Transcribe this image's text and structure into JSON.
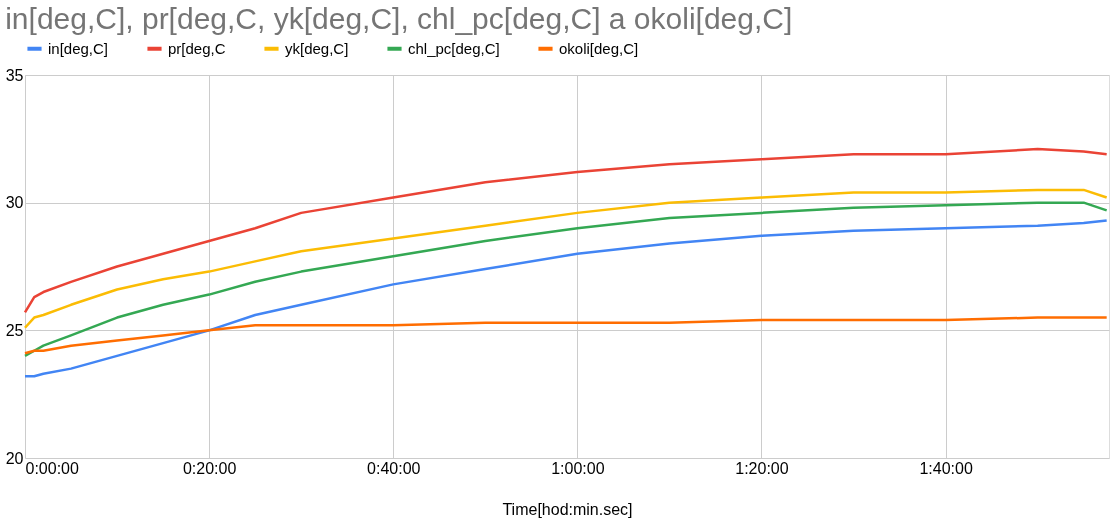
{
  "chart_data": {
    "type": "line",
    "title": "in[deg,C], pr[deg,C, yk[deg,C], chl_pc[deg,C] a okoli[deg,C]",
    "xlabel": "Time[hod:min.sec]",
    "x": [
      0,
      0.0167,
      0.0333,
      0.0833,
      0.1667,
      0.25,
      0.3333,
      0.4167,
      0.5,
      0.6667,
      0.8333,
      1,
      1.1667,
      1.3333,
      1.5,
      1.6667,
      1.8333,
      1.9167,
      1.9583
    ],
    "series": [
      {
        "name": "in[deg,C]",
        "color": "#4285f4",
        "values": [
          23.2,
          23.2,
          23.3,
          23.5,
          24.0,
          24.5,
          25.0,
          25.6,
          26.0,
          26.8,
          27.4,
          28.0,
          28.4,
          28.7,
          28.9,
          29.0,
          29.1,
          29.2,
          29.3
        ]
      },
      {
        "name": "pr[deg,C",
        "color": "#ea4335",
        "values": [
          25.7,
          26.3,
          26.5,
          26.9,
          27.5,
          28.0,
          28.5,
          29.0,
          29.6,
          30.2,
          30.8,
          31.2,
          31.5,
          31.7,
          31.9,
          31.9,
          32.1,
          32.0,
          31.9
        ]
      },
      {
        "name": "yk[deg,C]",
        "color": "#fbbc04",
        "values": [
          25.1,
          25.5,
          25.6,
          26.0,
          26.6,
          27.0,
          27.3,
          27.7,
          28.1,
          28.6,
          29.1,
          29.6,
          30.0,
          30.2,
          30.4,
          30.4,
          30.5,
          30.5,
          30.2
        ]
      },
      {
        "name": "chl_pc[deg,C]",
        "color": "#34a853",
        "values": [
          24.0,
          24.2,
          24.4,
          24.8,
          25.5,
          26.0,
          26.4,
          26.9,
          27.3,
          27.9,
          28.5,
          29.0,
          29.4,
          29.6,
          29.8,
          29.9,
          30.0,
          30.0,
          29.7
        ]
      },
      {
        "name": "okoli[deg,C]",
        "color": "#ff6d01",
        "values": [
          24.1,
          24.2,
          24.2,
          24.4,
          24.6,
          24.8,
          25.0,
          25.2,
          25.2,
          25.2,
          25.3,
          25.3,
          25.3,
          25.4,
          25.4,
          25.4,
          25.5,
          25.5,
          25.5
        ]
      }
    ],
    "xlim": [
      0,
      1.9625
    ],
    "xticks": [
      {
        "value": 0,
        "label": "0:00:00"
      },
      {
        "value": 0.3333,
        "label": "0:20:00"
      },
      {
        "value": 0.6667,
        "label": "0:40:00"
      },
      {
        "value": 1,
        "label": "1:00:00"
      },
      {
        "value": 1.3333,
        "label": "1:20:00"
      },
      {
        "value": 1.6667,
        "label": "1:40:00"
      }
    ],
    "ylim": [
      20,
      35
    ],
    "yticks": [
      20,
      25,
      30,
      35
    ],
    "grid": true,
    "legend": "top",
    "marker": "none",
    "line_style": "solid"
  }
}
